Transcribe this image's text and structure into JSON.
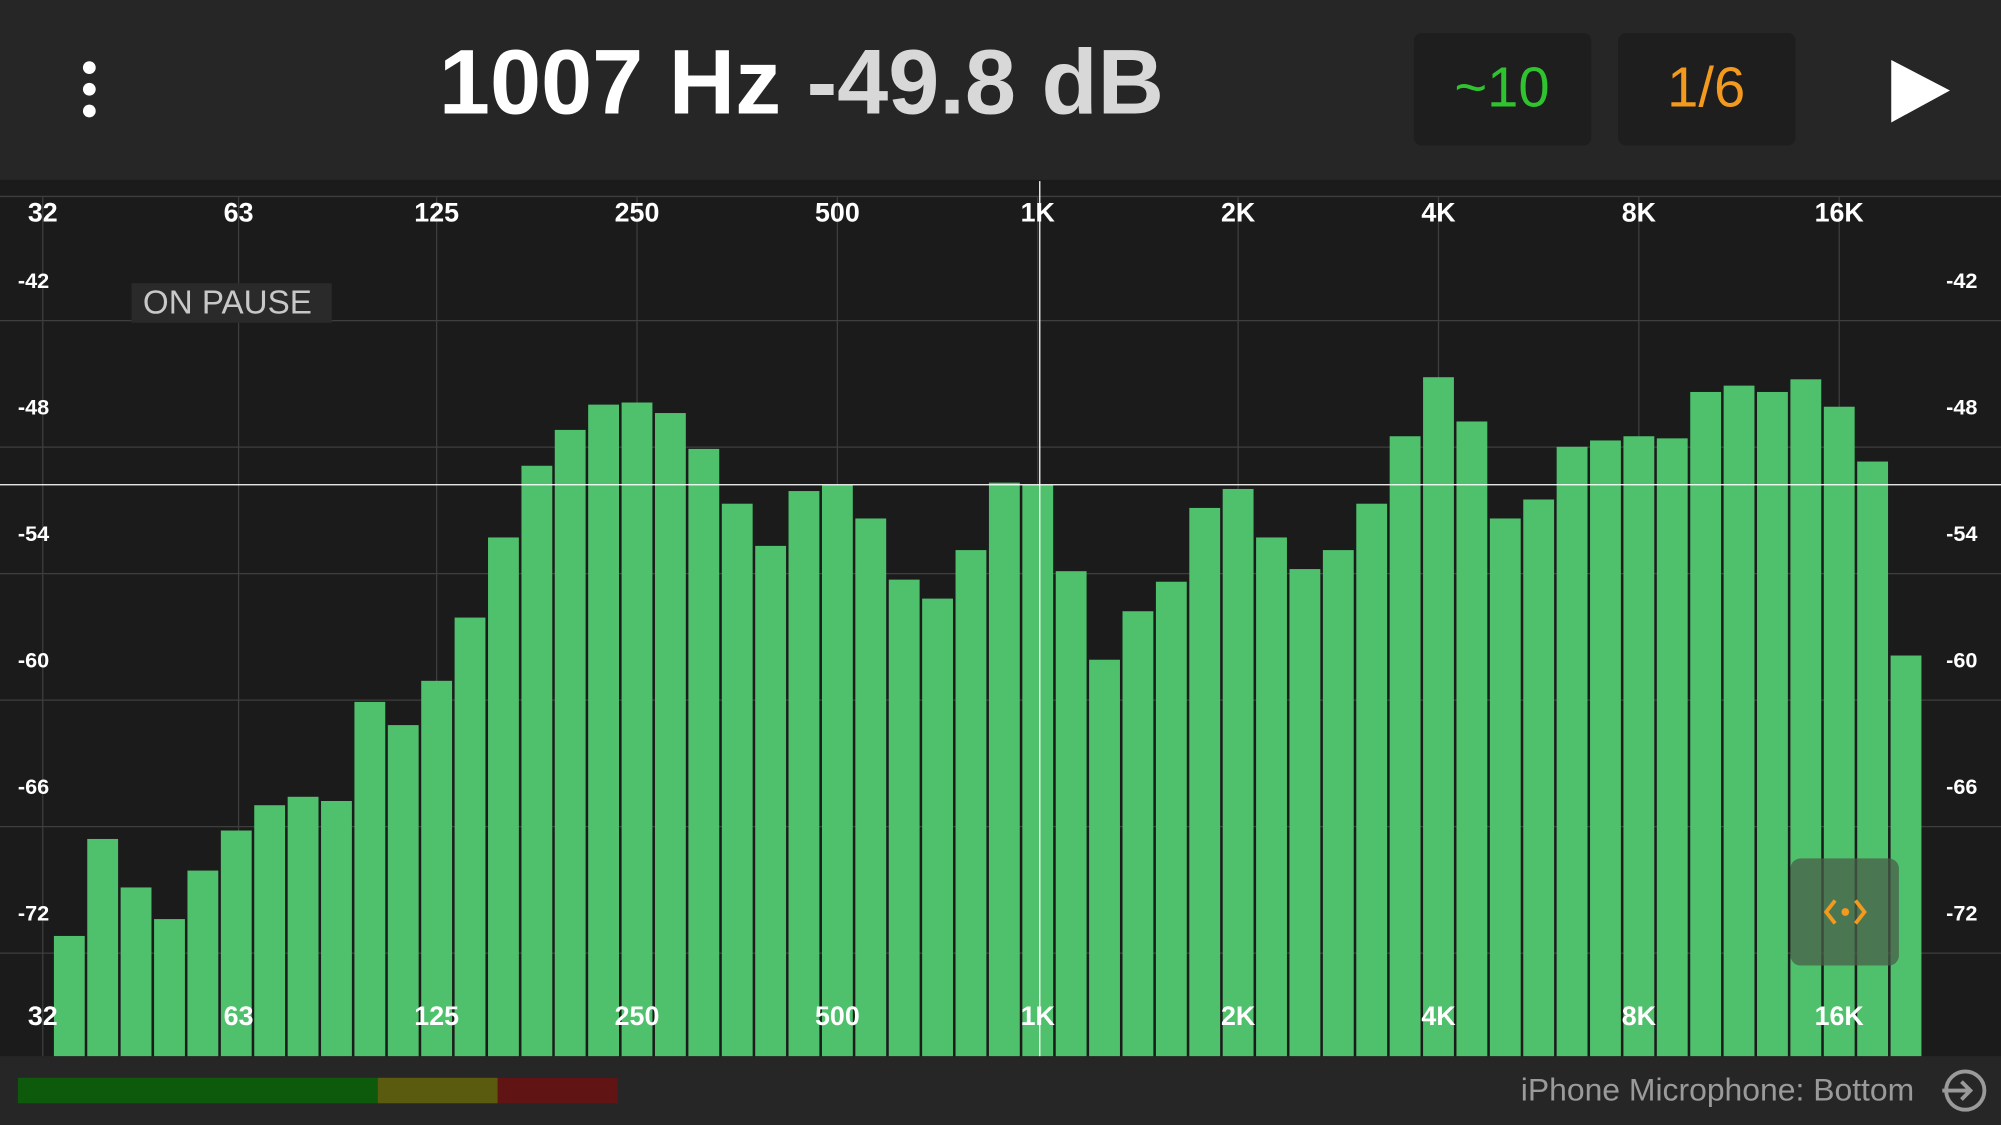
{
  "header": {
    "frequency": "1007 Hz",
    "level": "-49.8 dB",
    "averaging": "~10",
    "resolution": "1/6"
  },
  "status": "ON PAUSE",
  "footer": {
    "input": "iPhone Microphone: Bottom"
  },
  "chart_data": {
    "type": "bar",
    "x": [
      35.08,
      39.37,
      44.19,
      49.61,
      55.68,
      62.5,
      70.15,
      78.75,
      88.39,
      99.21,
      111.36,
      125,
      140.3,
      157.5,
      176.8,
      198.4,
      222.7,
      250,
      280.6,
      315,
      353.6,
      396.9,
      445.4,
      500,
      561.2,
      630,
      707.1,
      793.7,
      890.9,
      1000,
      1122.5,
      1259.9,
      1414.2,
      1587.4,
      1781.8,
      2000,
      2244.9,
      2519.8,
      2828.4,
      3174.8,
      3563.6,
      4000,
      4489.8,
      5039.7,
      5656.9,
      6349.6,
      7127.2,
      8000,
      8979.7,
      10079.4,
      11313.7,
      12699.2,
      14254.4,
      16000,
      17959.4,
      20158.7
    ],
    "values": [
      -73.0,
      -68.4,
      -70.7,
      -72.2,
      -69.9,
      -68.0,
      -66.8,
      -66.4,
      -66.6,
      -61.9,
      -63.0,
      -60.9,
      -57.9,
      -54.1,
      -50.7,
      -49.0,
      -47.8,
      -47.7,
      -48.2,
      -49.9,
      -52.5,
      -54.5,
      -51.9,
      -51.6,
      -53.2,
      -56.1,
      -57.0,
      -54.7,
      -51.5,
      -51.6,
      -55.7,
      -59.9,
      -57.6,
      -56.2,
      -52.7,
      -51.8,
      -54.1,
      -55.6,
      -54.7,
      -52.5,
      -49.3,
      -46.5,
      -48.6,
      -53.2,
      -52.3,
      -49.8,
      -49.5,
      -49.3,
      -49.4,
      -47.2,
      -46.9,
      -47.2,
      -46.6,
      -47.9,
      -50.5,
      -59.7
    ],
    "color": "#4fc06c",
    "xscale": "log",
    "xlim": [
      27.6,
      28000
    ],
    "xticks": [
      32,
      63,
      125,
      250,
      500,
      {
        "value": 1000,
        "label": "1K"
      },
      {
        "value": 2000,
        "label": "2K"
      },
      {
        "value": 4000,
        "label": "4K"
      },
      {
        "value": 8000,
        "label": "8K"
      },
      {
        "value": 16000,
        "label": "16K"
      }
    ],
    "ylim": [
      -78.7,
      -37.2
    ],
    "yticks": [
      -42,
      -48,
      -54,
      -60,
      -66,
      -72
    ],
    "grid": true,
    "cursor": {
      "x": 1007,
      "y": -51.6
    }
  }
}
